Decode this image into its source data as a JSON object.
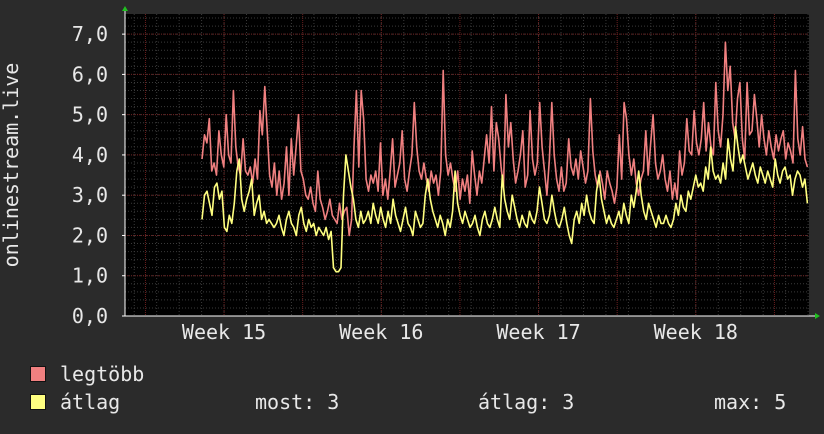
{
  "chart_data": {
    "type": "line",
    "ylabel": "onlinestream.live",
    "ylim": [
      0,
      7.5
    ],
    "yticks": [
      "0,0",
      "1,0",
      "2,0",
      "3,0",
      "4,0",
      "5,0",
      "6,0",
      "7,0"
    ],
    "xticks": [
      {
        "label": "Week 15",
        "week": 15
      },
      {
        "label": "Week 16",
        "week": 16
      },
      {
        "label": "Week 17",
        "week": 17
      },
      {
        "label": "Week 18",
        "week": 18
      }
    ],
    "xlim": [
      14.37,
      18.72
    ],
    "grid": true,
    "colors": {
      "legtobb": "#f08080",
      "atlag": "#ffff80",
      "grid": "#6a1e1e",
      "axis": "#ffffff",
      "arrow": "#20c020"
    },
    "series": [
      {
        "name": "legtöbb",
        "color": "#f08080",
        "x_start": 14.86,
        "x_end": 18.71,
        "values": [
          3.9,
          4.5,
          4.3,
          4.9,
          3.6,
          3.8,
          3.5,
          4.6,
          4.0,
          3.7,
          5.0,
          4.0,
          3.8,
          5.6,
          4.2,
          3.7,
          3.5,
          4.4,
          3.6,
          3.5,
          3.7,
          3.3,
          3.9,
          3.4,
          5.1,
          4.5,
          5.7,
          4.6,
          3.5,
          3.2,
          3.8,
          3.0,
          3.6,
          2.9,
          3.3,
          4.2,
          3.0,
          4.4,
          3.5,
          4.2,
          5.0,
          3.6,
          3.4,
          3.0,
          2.9,
          3.2,
          2.8,
          2.6,
          3.6,
          2.9,
          2.7,
          2.4,
          2.6,
          2.9,
          2.5,
          2.4,
          2.3,
          2.8,
          2.4,
          2.6,
          2.7,
          2.0,
          2.4,
          4.2,
          5.6,
          3.7,
          5.6,
          4.9,
          3.4,
          3.1,
          3.5,
          3.3,
          3.6,
          3.1,
          4.3,
          3.0,
          3.4,
          2.9,
          3.6,
          4.4,
          3.2,
          3.5,
          3.8,
          4.6,
          3.4,
          3.1,
          3.6,
          4.0,
          5.3,
          4.2,
          3.6,
          3.4,
          3.8,
          3.4,
          3.1,
          3.6,
          3.3,
          3.5,
          3.0,
          3.6,
          6.1,
          4.0,
          3.5,
          3.8,
          3.4,
          3.1,
          3.6,
          2.9,
          3.4,
          3.1,
          3.5,
          2.8,
          4.1,
          3.5,
          3.0,
          3.6,
          3.3,
          3.9,
          4.5,
          3.8,
          5.2,
          3.6,
          4.8,
          4.4,
          3.7,
          3.2,
          5.5,
          4.2,
          4.8,
          3.9,
          3.3,
          3.6,
          4.0,
          4.6,
          3.2,
          3.5,
          5.1,
          3.9,
          3.5,
          3.8,
          5.3,
          4.2,
          3.6,
          3.0,
          3.9,
          5.3,
          4.0,
          3.4,
          3.1,
          3.7,
          3.1,
          3.3,
          4.4,
          3.7,
          3.5,
          3.9,
          3.4,
          4.1,
          3.7,
          3.3,
          3.6,
          5.4,
          4.1,
          3.5,
          3.2,
          3.6,
          3.3,
          2.9,
          3.6,
          3.3,
          3.1,
          2.8,
          3.2,
          4.5,
          3.4,
          5.3,
          4.9,
          4.0,
          3.5,
          3.9,
          3.3,
          3.0,
          3.4,
          3.6,
          4.6,
          3.5,
          4.3,
          5.0,
          3.8,
          3.4,
          3.6,
          4.0,
          3.4,
          3.1,
          3.6,
          2.9,
          3.3,
          2.9,
          4.1,
          3.5,
          3.8,
          4.9,
          4.1,
          4.0,
          5.1,
          4.3,
          4.0,
          4.4,
          5.3,
          4.1,
          4.8,
          4.2,
          4.0,
          5.8,
          4.6,
          4.2,
          5.0,
          6.8,
          5.6,
          6.2,
          4.8,
          4.4,
          5.4,
          5.8,
          4.4,
          3.9,
          5.8,
          4.5,
          4.6,
          5.5,
          4.9,
          4.2,
          5.0,
          4.4,
          4.0,
          4.6,
          4.2,
          3.9,
          4.5,
          4.1,
          4.4,
          4.6,
          3.9,
          4.3,
          4.1,
          3.8,
          6.1,
          4.4,
          4.0,
          4.7,
          3.9,
          3.7
        ]
      },
      {
        "name": "átlag",
        "color": "#ffff80",
        "x_start": 14.86,
        "x_end": 18.71,
        "values": [
          2.4,
          3.0,
          3.1,
          2.8,
          2.5,
          3.2,
          3.3,
          2.9,
          3.1,
          2.2,
          2.1,
          2.5,
          2.3,
          2.8,
          3.6,
          3.9,
          2.9,
          2.6,
          2.9,
          3.1,
          3.4,
          2.5,
          2.8,
          3.0,
          2.4,
          2.6,
          2.3,
          2.4,
          2.3,
          2.2,
          2.3,
          2.5,
          2.2,
          2.0,
          2.4,
          2.6,
          2.3,
          2.2,
          2.0,
          2.5,
          2.7,
          2.3,
          2.1,
          2.4,
          2.2,
          2.3,
          2.0,
          2.2,
          2.1,
          2.0,
          2.2,
          1.9,
          2.1,
          1.2,
          1.1,
          1.1,
          1.2,
          3.0,
          4.0,
          3.6,
          3.2,
          2.9,
          2.4,
          2.2,
          2.6,
          2.3,
          2.4,
          2.6,
          2.3,
          2.8,
          2.5,
          2.3,
          2.7,
          2.4,
          2.2,
          2.6,
          2.3,
          2.9,
          2.5,
          2.3,
          2.1,
          2.4,
          2.7,
          2.3,
          2.2,
          2.0,
          2.6,
          2.4,
          2.2,
          2.3,
          3.0,
          3.4,
          2.9,
          2.6,
          2.4,
          2.2,
          2.5,
          2.3,
          2.0,
          2.4,
          2.2,
          2.6,
          3.6,
          2.8,
          2.5,
          2.3,
          2.6,
          2.4,
          2.2,
          2.3,
          2.5,
          2.2,
          2.0,
          2.4,
          2.6,
          2.3,
          2.2,
          2.4,
          2.7,
          2.4,
          2.2,
          3.5,
          2.9,
          2.6,
          2.4,
          3.0,
          2.7,
          2.4,
          2.2,
          2.5,
          2.3,
          2.2,
          2.6,
          2.4,
          2.3,
          2.6,
          3.2,
          2.8,
          2.4,
          2.3,
          2.5,
          3.0,
          2.6,
          2.3,
          2.2,
          2.4,
          2.7,
          2.3,
          2.0,
          1.8,
          2.4,
          2.6,
          2.3,
          2.8,
          2.5,
          3.0,
          2.6,
          2.4,
          2.3,
          3.1,
          3.5,
          2.9,
          2.6,
          2.3,
          2.5,
          2.3,
          2.2,
          2.4,
          2.6,
          2.3,
          2.8,
          2.5,
          2.3,
          3.0,
          2.7,
          3.1,
          3.6,
          3.0,
          2.6,
          2.4,
          2.8,
          2.6,
          2.4,
          2.2,
          2.5,
          2.3,
          2.3,
          2.5,
          2.3,
          2.2,
          2.4,
          2.8,
          2.5,
          3.0,
          2.7,
          2.6,
          3.1,
          2.9,
          3.2,
          3.5,
          3.2,
          3.3,
          3.1,
          3.7,
          3.4,
          4.2,
          3.6,
          3.4,
          3.5,
          3.3,
          3.8,
          3.4,
          4.4,
          3.9,
          3.6,
          4.7,
          4.2,
          3.8,
          4.0,
          3.7,
          3.4,
          3.6,
          3.8,
          3.5,
          3.3,
          3.7,
          3.5,
          3.3,
          3.6,
          3.4,
          3.2,
          3.9,
          3.5,
          3.3,
          3.6,
          3.7,
          3.4,
          3.5,
          3.0,
          3.4,
          3.6,
          3.5,
          3.2,
          3.4,
          2.8
        ]
      }
    ]
  },
  "legend": [
    {
      "label": "legtöbb",
      "color": "#f08080"
    },
    {
      "label": "átlag",
      "color": "#ffff80"
    }
  ],
  "stats": {
    "most": "most: 3",
    "atlag": "átlag: 3",
    "max": "max: 5"
  }
}
